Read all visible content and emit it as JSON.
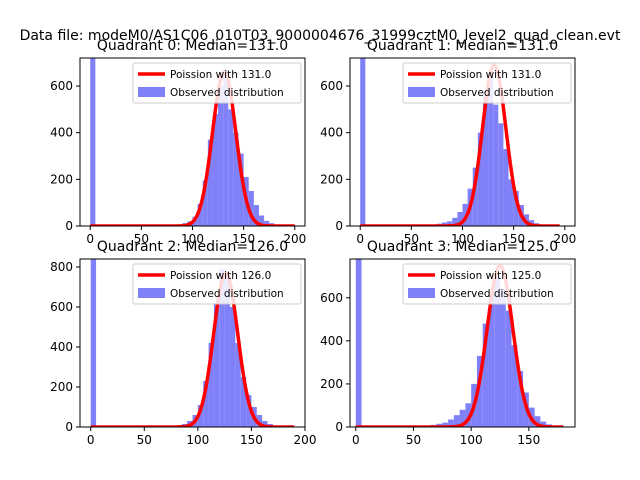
{
  "figure": {
    "suptitle": "Data file: modeM0/AS1C06_010T03_9000004676_31999cztM0_level2_quad_clean.evt"
  },
  "colors": {
    "hist": "#8080f8",
    "poisson": "#ff0000",
    "axis": "#000000",
    "background": "#ffffff"
  },
  "chart_data": [
    {
      "type": "bar",
      "title": "Quadrant 0: Median=131.0",
      "xlim": [
        -10,
        210
      ],
      "ylim": [
        0,
        720
      ],
      "xticks": [
        0,
        50,
        100,
        150,
        200
      ],
      "yticks": [
        0,
        200,
        400,
        600
      ],
      "legend": {
        "placement": "top-right",
        "entries": [
          "Poission with 131.0",
          "Observed distribution"
        ]
      },
      "histogram": {
        "bins": [
          0,
          80,
          85,
          90,
          95,
          100,
          105,
          110,
          115,
          120,
          125,
          130,
          135,
          140,
          145,
          150,
          155,
          160,
          165,
          170,
          175,
          180,
          185,
          190
        ],
        "counts": [
          720,
          2,
          6,
          12,
          20,
          40,
          95,
          195,
          370,
          480,
          600,
          670,
          500,
          400,
          310,
          210,
          150,
          90,
          45,
          22,
          12,
          6,
          3,
          2
        ],
        "bin_width": 5
      },
      "poisson": {
        "mean": 131.0,
        "peak": 660,
        "x_range": [
          0,
          200
        ],
        "label": "Poission with 131.0"
      }
    },
    {
      "type": "bar",
      "title": "Quadrant 1: Median=131.0",
      "xlim": [
        -10,
        210
      ],
      "ylim": [
        0,
        720
      ],
      "xticks": [
        0,
        50,
        100,
        150,
        200
      ],
      "yticks": [
        0,
        200,
        400,
        600
      ],
      "legend": {
        "placement": "top-right",
        "entries": [
          "Poission with 131.0",
          "Observed distribution"
        ]
      },
      "histogram": {
        "bins": [
          0,
          70,
          75,
          80,
          85,
          90,
          95,
          100,
          105,
          110,
          115,
          120,
          125,
          130,
          135,
          140,
          145,
          150,
          155,
          160,
          165,
          170,
          175,
          180
        ],
        "counts": [
          720,
          5,
          10,
          15,
          20,
          35,
          60,
          95,
          160,
          250,
          400,
          580,
          650,
          520,
          440,
          330,
          200,
          150,
          90,
          50,
          25,
          12,
          6,
          3
        ],
        "bin_width": 5
      },
      "poisson": {
        "mean": 131.0,
        "peak": 690,
        "x_range": [
          0,
          195
        ],
        "label": "Poission with 131.0"
      }
    },
    {
      "type": "bar",
      "title": "Quadrant 2: Median=126.0",
      "xlim": [
        -10,
        200
      ],
      "ylim": [
        0,
        840
      ],
      "xticks": [
        0,
        50,
        100,
        150,
        200
      ],
      "yticks": [
        0,
        200,
        400,
        600,
        800
      ],
      "legend": {
        "placement": "top-right",
        "entries": [
          "Poission with 126.0",
          "Observed distribution"
        ]
      },
      "histogram": {
        "bins": [
          0,
          75,
          80,
          85,
          90,
          95,
          100,
          105,
          110,
          115,
          120,
          125,
          130,
          135,
          140,
          145,
          150,
          155,
          160,
          165,
          170,
          175,
          180,
          185
        ],
        "counts": [
          840,
          3,
          8,
          15,
          30,
          60,
          110,
          230,
          420,
          620,
          790,
          760,
          600,
          420,
          250,
          160,
          100,
          60,
          30,
          15,
          8,
          4,
          2,
          1
        ],
        "bin_width": 5
      },
      "poisson": {
        "mean": 126.0,
        "peak": 770,
        "x_range": [
          0,
          190
        ],
        "label": "Poission with 126.0"
      }
    },
    {
      "type": "bar",
      "title": "Quadrant 3: Median=125.0",
      "xlim": [
        -5,
        190
      ],
      "ylim": [
        0,
        780
      ],
      "xticks": [
        0,
        50,
        100,
        150
      ],
      "yticks": [
        0,
        200,
        400,
        600
      ],
      "legend": {
        "placement": "top-right",
        "entries": [
          "Poission with 125.0",
          "Observed distribution"
        ]
      },
      "histogram": {
        "bins": [
          0,
          55,
          60,
          65,
          70,
          75,
          80,
          85,
          90,
          95,
          100,
          105,
          110,
          115,
          120,
          125,
          130,
          135,
          140,
          145,
          150,
          155,
          160,
          165,
          170
        ],
        "counts": [
          780,
          4,
          6,
          10,
          15,
          20,
          35,
          55,
          80,
          110,
          200,
          330,
          480,
          620,
          700,
          640,
          540,
          380,
          260,
          160,
          90,
          50,
          25,
          12,
          6
        ],
        "bin_width": 5
      },
      "poisson": {
        "mean": 125.0,
        "peak": 750,
        "x_range": [
          0,
          180
        ],
        "label": "Poission with 125.0"
      }
    }
  ]
}
